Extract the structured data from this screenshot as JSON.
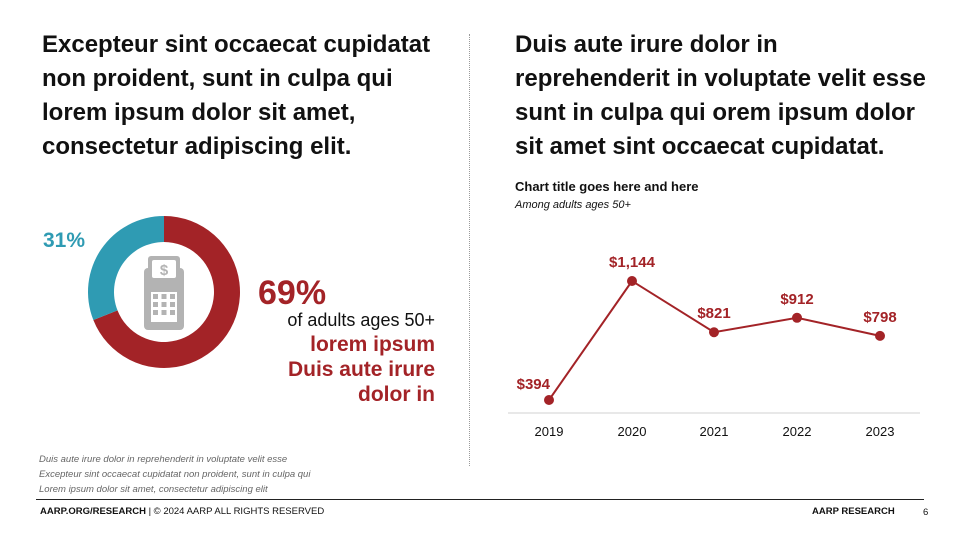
{
  "left": {
    "headline": "Excepteur sint occaecat cupidatat non proident, sunt in culpa qui lorem ipsum dolor sit amet, consectetur adipiscing elit.",
    "donut": {
      "small_pct_label": "31%",
      "big_pct_label": "69%",
      "line1": "of adults ages 50+",
      "line2": "lorem ipsum",
      "line3": "Duis aute irure",
      "line4": "dolor in",
      "icon": "calculator-icon",
      "colors": {
        "primary": "#a32327",
        "secondary": "#2f9bb3",
        "icon": "#b3b3b3"
      }
    },
    "notes": [
      "Duis aute irure dolor in reprehenderit in voluptate velit esse",
      "Excepteur sint occaecat cupidatat non proident, sunt in culpa qui",
      "Lorem ipsum dolor sit amet, consectetur adipiscing elit"
    ]
  },
  "right": {
    "headline": "Duis aute irure dolor in reprehenderit in voluptate velit esse sunt in culpa qui orem ipsum dolor sit amet sint occaecat cupidatat."
  },
  "chart_data": [
    {
      "type": "pie",
      "categories": [
        "69%",
        "31%"
      ],
      "values": [
        69,
        31
      ],
      "colors": [
        "#a32327",
        "#2f9bb3"
      ]
    },
    {
      "type": "line",
      "title": "Chart title goes here and here",
      "subtitle": "Among adults ages 50+",
      "categories": [
        "2019",
        "2020",
        "2021",
        "2022",
        "2023"
      ],
      "values": [
        394,
        1144,
        821,
        912,
        798
      ],
      "labels": [
        "$394",
        "$1,144",
        "$821",
        "$912",
        "$798"
      ],
      "ylim": [
        394,
        1144
      ],
      "color": "#a32327",
      "grid": false
    }
  ],
  "footer": {
    "left_bold": "AARP.ORG/RESEARCH",
    "left_rest": " | © 2024 AARP ALL RIGHTS RESERVED",
    "right": "AARP RESEARCH",
    "page": "6"
  }
}
